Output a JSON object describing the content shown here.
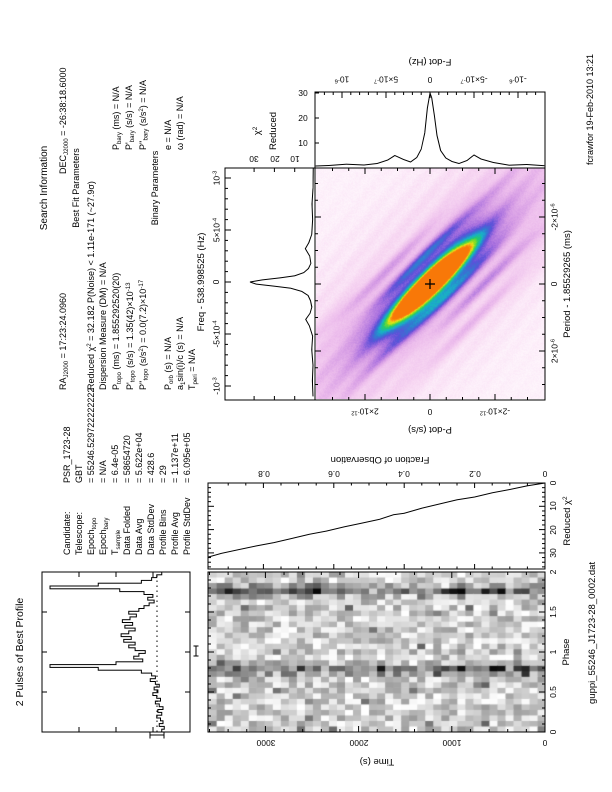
{
  "meta": {
    "filename": "guppi_55246_J1723-28_0002.dat",
    "signature": "fcrawfor 19-Feb-2010 13:21"
  },
  "profile_panel": {
    "title": "2 Pulses of Best Profile"
  },
  "candidate": {
    "rows": [
      {
        "label": "Candidate:",
        "value": "PSR_1723-28"
      },
      {
        "label": "Telescope:",
        "value": "GBT"
      },
      {
        "label": "Epoch_{topo}",
        "value": "= 55246.529722222222"
      },
      {
        "label": "Epoch_{bary}",
        "value": "= N/A"
      },
      {
        "label": "T_{sample}",
        "value": "= 6.4e-05"
      },
      {
        "label": "Data Folded",
        "value": "= 58654720"
      },
      {
        "label": "Data Avg",
        "value": "= 5.622e+04"
      },
      {
        "label": "Data StdDev",
        "value": "= 428.6"
      },
      {
        "label": "Profile Bins",
        "value": "= 29"
      },
      {
        "label": "Profile Avg",
        "value": "= 1.137e+11"
      },
      {
        "label": "Profile StdDev",
        "value": "= 6.095e+05"
      }
    ]
  },
  "search": {
    "title": "Search Information",
    "ra": "RA_{J2000} = 17:23:24.0960",
    "dec": "DEC_{J2000} = -26:38:18.6000",
    "bestfit_title": "Best Fit Parameters",
    "chi2_line": "Reduced χ^{2} = 32.182    P(Noise) < 1.11e-171    (~27.9σ)",
    "dm_line": "Dispersion Measure (DM) = N/A",
    "p_topo": "P_{topo} (ms) = 1.855292520(20)",
    "p_bary": "P_{bary} (ms) = N/A",
    "pd_topo": "P'_{topo} (s/s) = 1.35(42)×10^{-13}",
    "pd_bary": "P'_{bary} (s/s) = N/A",
    "pdd_topo": "P''_{topo} (s/s^{2}) = 0.0(7.2)×10^{-17}",
    "pdd_bary": "P''_{bary} (s/s^{2}) = N/A",
    "binary_title": "Binary Parameters",
    "p_orb": "P_{orb} (s) = N/A",
    "ecc": "e = N/A",
    "asini": "a_{1}sin(i)/c (s) = N/A",
    "omega": "ω (rad) = N/A",
    "t_peri": "T_{peri} = N/A"
  },
  "axes": {
    "phase": {
      "label": "Phase",
      "ticks": [
        "0",
        "0.5",
        "1",
        "1.5",
        "2"
      ]
    },
    "time": {
      "label": "Time (s)",
      "ticks": [
        "0",
        "1000",
        "2000",
        "3000"
      ]
    },
    "fraction": {
      "label": "Fraction of Observation",
      "ticks": [
        "0",
        "0.2",
        "0.4",
        "0.6",
        "0.8"
      ]
    },
    "chi2time": {
      "label": "Reduced χ^{2}",
      "ticks": [
        "30",
        "20",
        "10",
        "0"
      ]
    },
    "freq": {
      "label": "Freq - 538.998525 (Hz)",
      "ticks": [
        "-10^{-3}",
        "-5×10^{-4}",
        "0",
        "5×10^{-4}",
        "10^{-3}"
      ]
    },
    "fdot": {
      "label": "F-dot (Hz)",
      "ticks": [
        "10^{-6}",
        "5×10^{-7}",
        "0",
        "-5×10^{-7}",
        "-10^{-6}"
      ]
    },
    "period": {
      "label": "Period - 1.85529265 (ms)",
      "ticks": [
        "2×10^{-6}",
        "0",
        "-2×10^{-6}"
      ]
    },
    "pdot": {
      "label": "P-dot (s/s)",
      "ticks": [
        "2×10^{-12}",
        "0",
        "-2×10^{-12}"
      ]
    },
    "corner": {
      "line1": "χ^{2}",
      "line2": "Reduced",
      "freq_ticks": [
        "10",
        "20",
        "30"
      ],
      "fdot_ticks": [
        "10",
        "20",
        "30"
      ]
    }
  },
  "chart_data": [
    {
      "type": "line",
      "name": "best-profile",
      "title": "2 Pulses of Best Profile",
      "xlabel": "Phase",
      "x_range": [
        0,
        2
      ],
      "n_bins": 58,
      "values": [
        0.12,
        0.1,
        0.14,
        0.11,
        0.13,
        0.16,
        0.12,
        0.15,
        0.11,
        0.14,
        0.17,
        0.13,
        0.16,
        0.19,
        0.15,
        0.18,
        0.14,
        0.17,
        0.21,
        0.17,
        0.2,
        0.28,
        0.62,
        1.0,
        0.48,
        0.27,
        0.34,
        0.3,
        0.25,
        0.33,
        0.38,
        0.33,
        0.42,
        0.36,
        0.44,
        0.38,
        0.33,
        0.41,
        0.35,
        0.43,
        0.37,
        0.32,
        0.38,
        0.3,
        0.26,
        0.22,
        0.18,
        0.23,
        0.19,
        0.26,
        0.45,
        1.0,
        0.62,
        0.28,
        0.2,
        0.16,
        0.12,
        0.1
      ],
      "mean_line": true,
      "error_bar": true
    },
    {
      "type": "line",
      "name": "chi2-vs-time",
      "xlabel": "Reduced χ2 (0-37, increasing leftward)",
      "ylabel": "Fraction of Observation",
      "points": [
        [
          0,
          0
        ],
        [
          0.05,
          1.2
        ],
        [
          0.1,
          2.8
        ],
        [
          0.15,
          4.2
        ],
        [
          0.2,
          6.0
        ],
        [
          0.25,
          7.2
        ],
        [
          0.3,
          9.0
        ],
        [
          0.35,
          10.8
        ],
        [
          0.4,
          13.0
        ],
        [
          0.43,
          13.6
        ],
        [
          0.47,
          15.6
        ],
        [
          0.52,
          17.2
        ],
        [
          0.57,
          18.8
        ],
        [
          0.62,
          20.6
        ],
        [
          0.67,
          22.0
        ],
        [
          0.72,
          23.8
        ],
        [
          0.77,
          25.6
        ],
        [
          0.82,
          27.0
        ],
        [
          0.87,
          28.6
        ],
        [
          0.92,
          30.2
        ],
        [
          0.957,
          31.8
        ]
      ]
    },
    {
      "type": "line",
      "name": "chi2-vs-freq",
      "xlabel": "Freq - 538.998525 (Hz), units 1e-3",
      "ylabel": "Reduced χ2",
      "points": [
        [
          -1.1,
          1.0
        ],
        [
          -0.95,
          1.3
        ],
        [
          -0.8,
          1.0
        ],
        [
          -0.65,
          1.6
        ],
        [
          -0.52,
          1.2
        ],
        [
          -0.42,
          2.8
        ],
        [
          -0.36,
          4.6
        ],
        [
          -0.3,
          2.4
        ],
        [
          -0.24,
          1.6
        ],
        [
          -0.18,
          2.2
        ],
        [
          -0.13,
          3.4
        ],
        [
          -0.09,
          6.5
        ],
        [
          -0.06,
          12
        ],
        [
          -0.04,
          20
        ],
        [
          -0.02,
          29
        ],
        [
          0,
          32
        ],
        [
          0.02,
          26
        ],
        [
          0.04,
          17
        ],
        [
          0.06,
          10
        ],
        [
          0.09,
          5.5
        ],
        [
          0.13,
          3.2
        ],
        [
          0.18,
          2.0
        ],
        [
          0.25,
          2.6
        ],
        [
          0.32,
          4.8
        ],
        [
          0.38,
          3.0
        ],
        [
          0.46,
          1.6
        ],
        [
          0.6,
          1.2
        ],
        [
          0.75,
          1.5
        ],
        [
          0.9,
          1.0
        ],
        [
          1.1,
          0.9
        ]
      ]
    },
    {
      "type": "line",
      "name": "chi2-vs-fdot",
      "xlabel": "F-dot (Hz), units 1e-6",
      "ylabel": "Reduced χ2",
      "points": [
        [
          -1.3,
          0.9
        ],
        [
          -1.1,
          1.4
        ],
        [
          -0.9,
          1.1
        ],
        [
          -0.72,
          2.2
        ],
        [
          -0.58,
          3.6
        ],
        [
          -0.5,
          5.2
        ],
        [
          -0.42,
          3.0
        ],
        [
          -0.33,
          1.8
        ],
        [
          -0.25,
          2.6
        ],
        [
          -0.18,
          4.0
        ],
        [
          -0.12,
          7.0
        ],
        [
          -0.08,
          13
        ],
        [
          -0.05,
          21
        ],
        [
          -0.02,
          28
        ],
        [
          0,
          30
        ],
        [
          0.03,
          24
        ],
        [
          0.06,
          14
        ],
        [
          0.1,
          7.5
        ],
        [
          0.15,
          4.2
        ],
        [
          0.22,
          2.4
        ],
        [
          0.3,
          3.4
        ],
        [
          0.4,
          5.0
        ],
        [
          0.48,
          3.2
        ],
        [
          0.6,
          1.8
        ],
        [
          0.75,
          1.2
        ],
        [
          0.95,
          1.5
        ],
        [
          1.15,
          1.0
        ],
        [
          1.3,
          0.8
        ]
      ]
    },
    {
      "type": "heatmap",
      "name": "phase-time-grayscale",
      "xlabel": "Phase",
      "ylabel": "Time (s)",
      "x_range": [
        0,
        2
      ],
      "y_range": [
        0,
        3600
      ],
      "cols": 29,
      "rows": 42,
      "pulse_phases": [
        0.77,
        1.77
      ],
      "band_sigma": 0.065,
      "seed": 77
    },
    {
      "type": "heatmap",
      "name": "period-pdot-colormap",
      "xlabel": "Period - 1.85529265 (ms)",
      "ylabel": "P-dot (s/s)",
      "x_range_ms": [
        3.45e-06,
        -3.45e-06
      ],
      "y_range": [
        3.5e-12,
        -3.5e-12
      ],
      "best_marker": "+",
      "ridge_angle_deg": 46,
      "seed": 13
    }
  ]
}
